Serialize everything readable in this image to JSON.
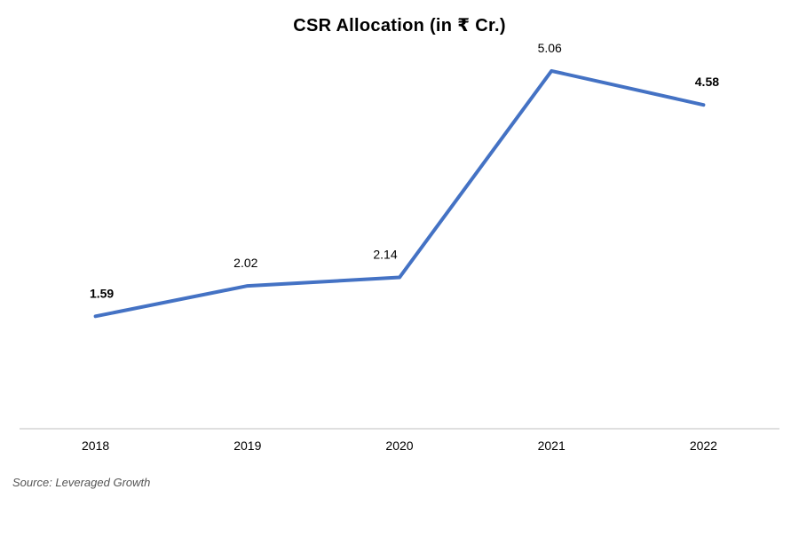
{
  "chart_data": {
    "type": "line",
    "title": "CSR Allocation (in ₹ Cr.)",
    "categories": [
      "2018",
      "2019",
      "2020",
      "2021",
      "2022"
    ],
    "series": [
      {
        "values": [
          1.59,
          2.02,
          2.14,
          5.06,
          4.58
        ],
        "color": "#4472C4"
      }
    ],
    "data_labels": [
      "1.59",
      "2.02",
      "2.14",
      "5.06",
      "4.58"
    ],
    "data_label_bold": [
      true,
      false,
      false,
      false,
      true
    ],
    "ylim": [
      0,
      6
    ],
    "grid": false,
    "legend": "none"
  },
  "source": "Source: Leveraged Growth",
  "colors": {
    "line": "#4472C4",
    "axis": "#BFBFBF"
  }
}
